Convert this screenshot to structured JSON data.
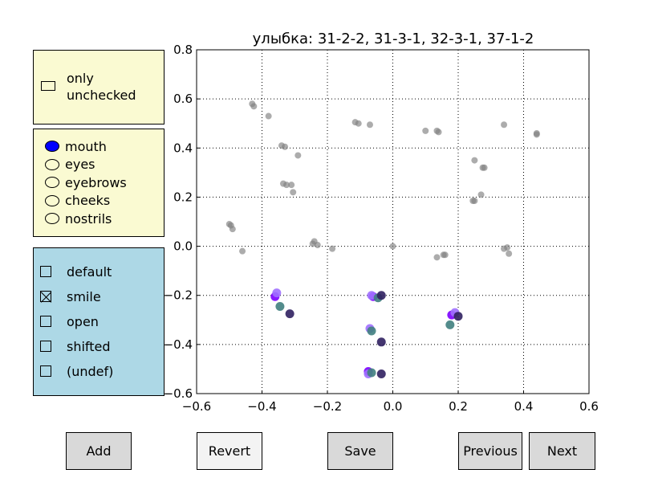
{
  "filter_panel": {
    "checkbox_label": "only\nunchecked",
    "checked": false
  },
  "region_panel": {
    "options": [
      "mouth",
      "eyes",
      "eyebrows",
      "cheeks",
      "nostrils"
    ],
    "selected": "mouth",
    "selected_color": "#0000ff"
  },
  "expression_panel": {
    "options": [
      {
        "label": "default",
        "checked": false
      },
      {
        "label": "smile",
        "checked": true
      },
      {
        "label": "open",
        "checked": false
      },
      {
        "label": "shifted",
        "checked": false
      },
      {
        "label": "(undef)",
        "checked": false
      }
    ]
  },
  "buttons": {
    "add": "Add",
    "revert": "Revert",
    "save": "Save",
    "previous": "Previous",
    "next": "Next"
  },
  "chart_data": {
    "type": "scatter",
    "title": "улыбка: 31-2-2, 31-3-1, 32-3-1, 37-1-2",
    "xlabel": "",
    "ylabel": "",
    "xlim": [
      -0.6,
      0.6
    ],
    "ylim": [
      -0.6,
      0.8
    ],
    "xticks": [
      "−0.6",
      "−0.4",
      "−0.2",
      "0.0",
      "0.2",
      "0.4",
      "0.6"
    ],
    "yticks": [
      "0.8",
      "0.6",
      "0.4",
      "0.2",
      "0.0",
      "−0.2",
      "−0.4",
      "−0.6"
    ],
    "grid": true,
    "series": [
      {
        "color": "#808080",
        "points": [
          [
            -0.43,
            0.58
          ],
          [
            -0.425,
            0.57
          ],
          [
            -0.38,
            0.53
          ],
          [
            -0.34,
            0.41
          ],
          [
            -0.33,
            0.405
          ],
          [
            -0.29,
            0.37
          ],
          [
            -0.335,
            0.255
          ],
          [
            -0.325,
            0.25
          ],
          [
            -0.31,
            0.25
          ],
          [
            -0.305,
            0.22
          ],
          [
            -0.5,
            0.09
          ],
          [
            -0.495,
            0.085
          ],
          [
            -0.49,
            0.07
          ],
          [
            -0.46,
            -0.02
          ],
          [
            -0.245,
            0.01
          ],
          [
            -0.24,
            0.02
          ],
          [
            -0.23,
            0.005
          ],
          [
            -0.185,
            -0.01
          ],
          [
            -0.115,
            0.505
          ],
          [
            -0.105,
            0.5
          ],
          [
            -0.07,
            0.495
          ],
          [
            0.0,
            0.0
          ],
          [
            0.1,
            0.47
          ],
          [
            0.135,
            0.47
          ],
          [
            0.14,
            0.465
          ],
          [
            0.135,
            -0.045
          ],
          [
            0.155,
            -0.035
          ],
          [
            0.16,
            -0.035
          ],
          [
            0.245,
            0.185
          ],
          [
            0.25,
            0.185
          ],
          [
            0.27,
            0.21
          ],
          [
            0.25,
            0.35
          ],
          [
            0.275,
            0.32
          ],
          [
            0.28,
            0.32
          ],
          [
            0.34,
            0.495
          ],
          [
            0.34,
            -0.01
          ],
          [
            0.35,
            -0.005
          ],
          [
            0.355,
            -0.03
          ],
          [
            0.44,
            0.46
          ],
          [
            0.44,
            0.455
          ]
        ]
      },
      {
        "color": "#7b00ff",
        "points": [
          [
            -0.36,
            -0.205
          ],
          [
            -0.075,
            -0.51
          ],
          [
            -0.06,
            -0.205
          ],
          [
            0.18,
            -0.28
          ]
        ]
      },
      {
        "color": "#a070ff",
        "points": [
          [
            -0.355,
            -0.19
          ],
          [
            -0.07,
            -0.335
          ],
          [
            -0.075,
            -0.52
          ],
          [
            -0.065,
            -0.2
          ],
          [
            0.19,
            -0.27
          ]
        ]
      },
      {
        "color": "#408080",
        "points": [
          [
            -0.345,
            -0.245
          ],
          [
            -0.065,
            -0.345
          ],
          [
            -0.065,
            -0.515
          ],
          [
            -0.045,
            -0.21
          ],
          [
            0.175,
            -0.32
          ]
        ]
      },
      {
        "color": "#302060",
        "points": [
          [
            -0.315,
            -0.275
          ],
          [
            -0.035,
            -0.39
          ],
          [
            -0.035,
            -0.52
          ],
          [
            -0.035,
            -0.2
          ],
          [
            0.2,
            -0.285
          ]
        ]
      }
    ]
  }
}
